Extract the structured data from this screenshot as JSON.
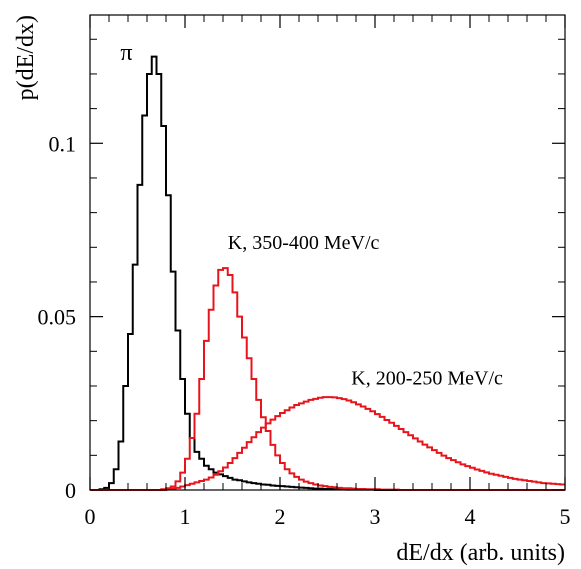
{
  "chart_data": {
    "type": "line",
    "title": "",
    "xlabel": "dE/dx (arb. units)",
    "ylabel": "p(dE/dx)",
    "xlim": [
      0,
      5
    ],
    "ylim": [
      0,
      0.137
    ],
    "x_ticks": [
      {
        "value": 0,
        "label": "0"
      },
      {
        "value": 1,
        "label": "1"
      },
      {
        "value": 2,
        "label": "2"
      },
      {
        "value": 3,
        "label": "3"
      },
      {
        "value": 4,
        "label": "4"
      },
      {
        "value": 5,
        "label": "5"
      }
    ],
    "y_ticks": [
      {
        "value": 0,
        "label": "0"
      },
      {
        "value": 0.05,
        "label": "0.05"
      },
      {
        "value": 0.1,
        "label": "0.1"
      }
    ],
    "grid": false,
    "legend": "none",
    "series": [
      {
        "name": "π",
        "color": "#000000",
        "style": "step",
        "bin_width": 0.05,
        "x_start": 0.0,
        "values": [
          0,
          0,
          0.0002,
          0.0006,
          0.002,
          0.006,
          0.014,
          0.03,
          0.045,
          0.065,
          0.088,
          0.108,
          0.12,
          0.125,
          0.12,
          0.105,
          0.085,
          0.063,
          0.046,
          0.032,
          0.022,
          0.015,
          0.011,
          0.009,
          0.007,
          0.006,
          0.005,
          0.0045,
          0.004,
          0.0035,
          0.003,
          0.0028,
          0.0025,
          0.0022,
          0.002,
          0.0018,
          0.0016,
          0.0015,
          0.0013,
          0.0012,
          0.0011,
          0.001,
          0.0009,
          0.0008,
          0.0007,
          0.0006,
          0.0005,
          0.0004,
          0.0004,
          0.0003,
          0.0003,
          0.0002,
          0.0002,
          0.0002,
          0.0001,
          0.0001,
          0.0001,
          0.0001,
          0.0001,
          0.0001,
          0,
          0,
          0,
          0,
          0,
          0,
          0,
          0,
          0,
          0,
          0,
          0,
          0,
          0,
          0,
          0,
          0,
          0,
          0,
          0,
          0,
          0,
          0,
          0,
          0,
          0,
          0,
          0,
          0,
          0,
          0,
          0,
          0,
          0,
          0,
          0,
          0,
          0,
          0,
          0
        ]
      },
      {
        "name": "K, 350-400 MeV/c",
        "color": "#e8141c",
        "style": "step",
        "bin_width": 0.05,
        "x_start": 0.0,
        "values": [
          0,
          0,
          0,
          0,
          0,
          0,
          0,
          0,
          0,
          0,
          0,
          0,
          0,
          0,
          0,
          0.0002,
          0.0005,
          0.001,
          0.0025,
          0.005,
          0.009,
          0.015,
          0.022,
          0.032,
          0.043,
          0.052,
          0.059,
          0.0635,
          0.064,
          0.062,
          0.057,
          0.05,
          0.044,
          0.038,
          0.032,
          0.026,
          0.021,
          0.017,
          0.013,
          0.01,
          0.0078,
          0.006,
          0.0048,
          0.0038,
          0.003,
          0.0024,
          0.002,
          0.0016,
          0.0013,
          0.0011,
          0.0009,
          0.0008,
          0.0006,
          0.0005,
          0.0005,
          0.0004,
          0.0003,
          0.0003,
          0.0002,
          0.0002,
          0.0002,
          0.0001,
          0.0001,
          0.0001,
          0.0001,
          0,
          0,
          0,
          0,
          0,
          0,
          0,
          0,
          0,
          0,
          0,
          0,
          0,
          0,
          0,
          0,
          0,
          0,
          0,
          0,
          0,
          0,
          0,
          0,
          0,
          0,
          0,
          0,
          0,
          0,
          0,
          0,
          0,
          0,
          0
        ]
      },
      {
        "name": "K, 200-250 MeV/c",
        "color": "#e8141c",
        "style": "step",
        "bin_width": 0.05,
        "x_start": 0.0,
        "values": [
          0,
          0,
          0,
          0,
          0,
          0,
          0,
          0,
          0,
          0,
          0,
          0,
          0,
          0,
          0,
          0,
          0.0002,
          0.0004,
          0.0006,
          0.001,
          0.0014,
          0.0018,
          0.0022,
          0.0026,
          0.003,
          0.0036,
          0.0044,
          0.0054,
          0.0065,
          0.0078,
          0.0092,
          0.0107,
          0.0122,
          0.0138,
          0.0152,
          0.0167,
          0.018,
          0.0192,
          0.0203,
          0.0213,
          0.0222,
          0.023,
          0.0238,
          0.0245,
          0.025,
          0.0255,
          0.026,
          0.0263,
          0.0266,
          0.0268,
          0.0268,
          0.0267,
          0.0265,
          0.0262,
          0.0258,
          0.0253,
          0.0247,
          0.0241,
          0.0234,
          0.0227,
          0.0219,
          0.0211,
          0.0202,
          0.0194,
          0.0185,
          0.0176,
          0.0167,
          0.0158,
          0.0149,
          0.014,
          0.0131,
          0.0123,
          0.0115,
          0.0107,
          0.0099,
          0.0092,
          0.0086,
          0.008,
          0.0074,
          0.0069,
          0.0064,
          0.0059,
          0.0055,
          0.0051,
          0.0047,
          0.0044,
          0.0041,
          0.0038,
          0.0035,
          0.0032,
          0.003,
          0.0028,
          0.0026,
          0.0024,
          0.0022,
          0.002,
          0.0019,
          0.0018,
          0.0017,
          0.0016
        ]
      }
    ],
    "annotations": [
      {
        "text": "π",
        "x": 0.32,
        "y": 0.124
      },
      {
        "text": "K, 350-400 MeV/c",
        "x": 1.45,
        "y": 0.0695
      },
      {
        "text": "K, 200-250 MeV/c",
        "x": 2.75,
        "y": 0.0305
      }
    ]
  }
}
